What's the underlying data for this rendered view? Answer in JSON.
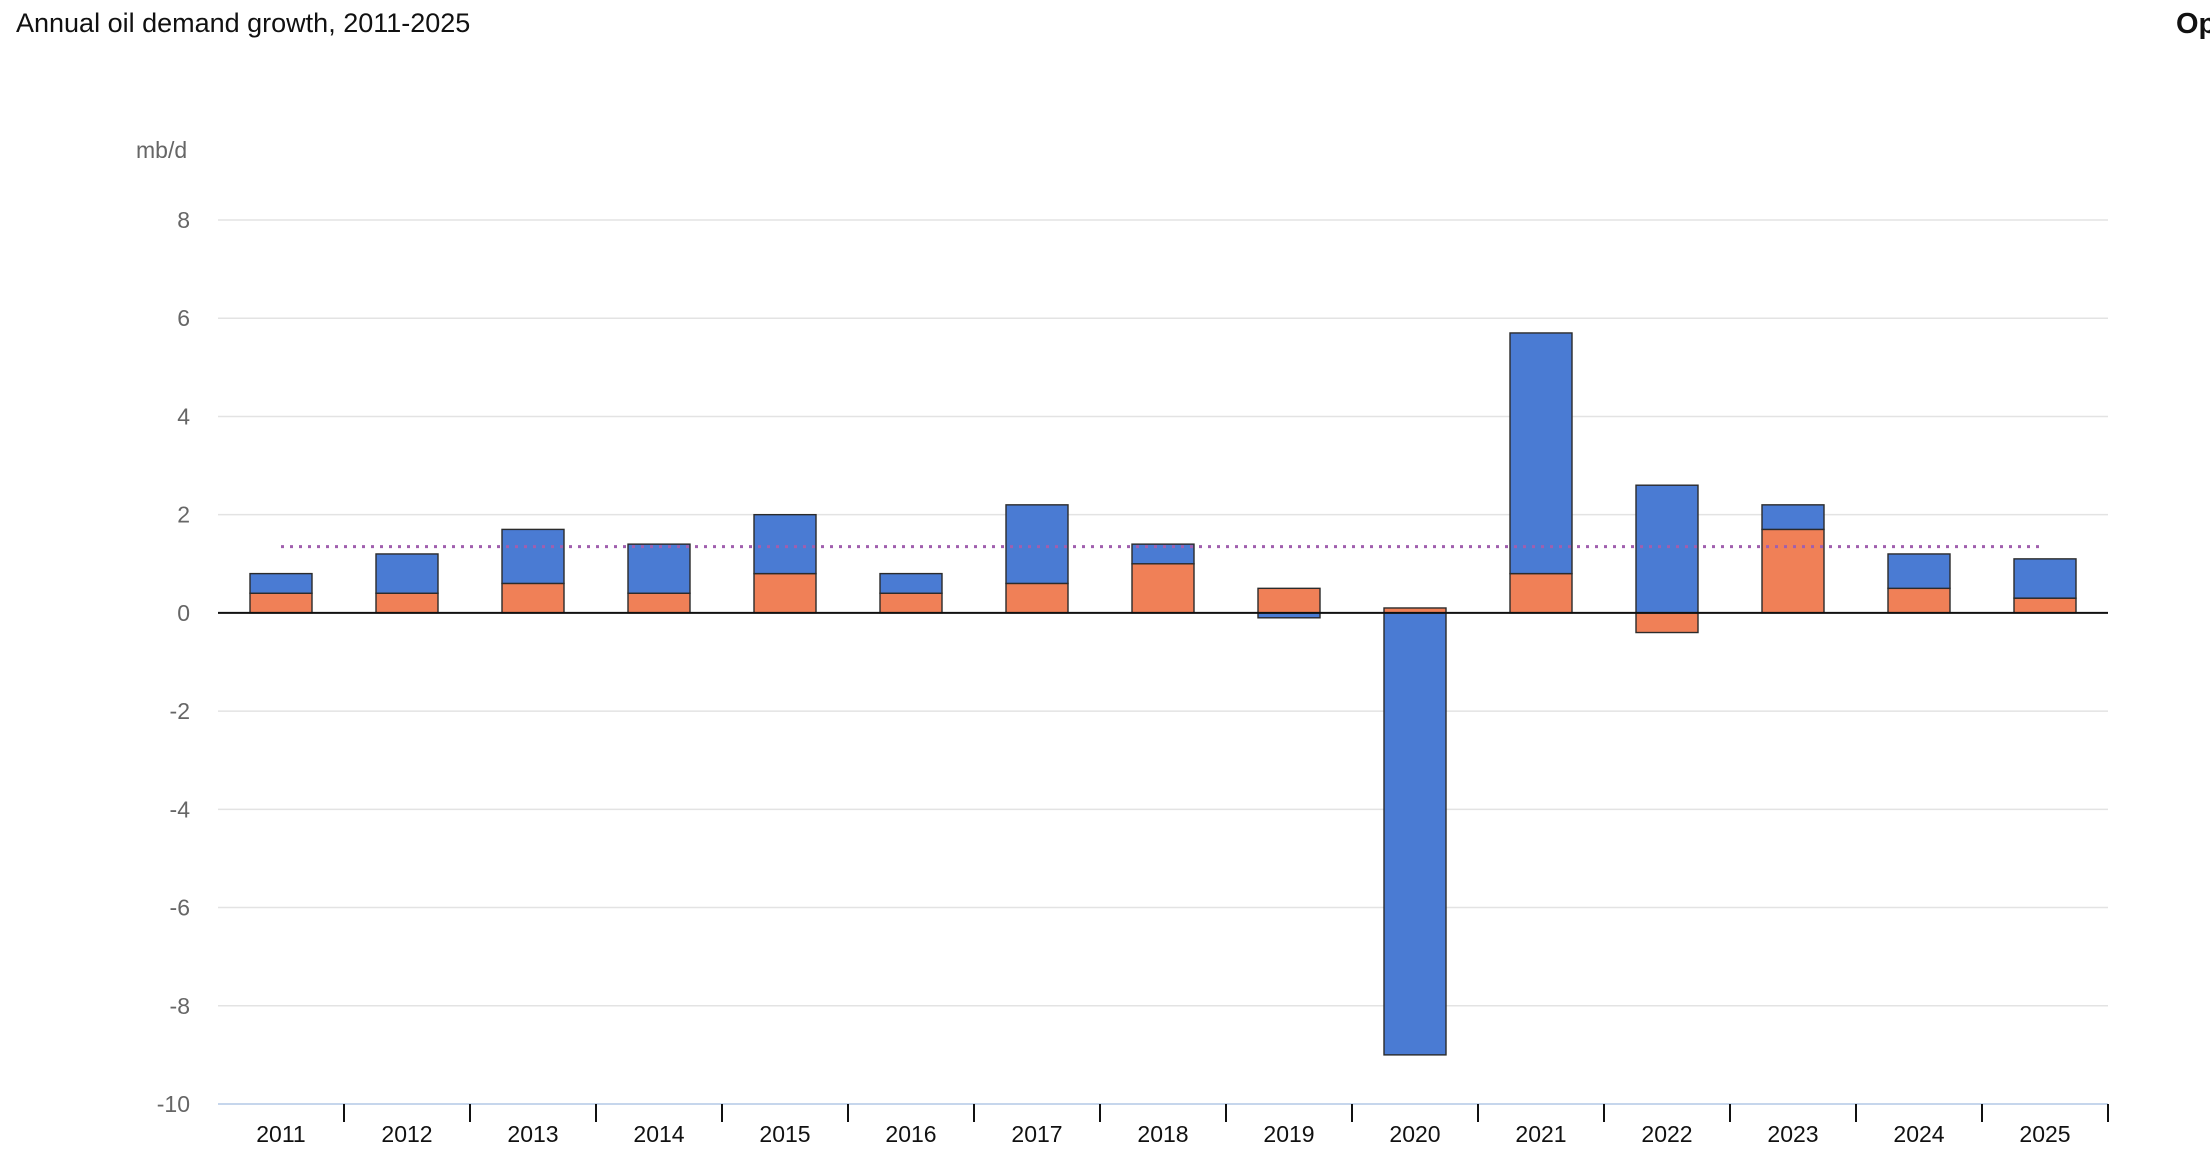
{
  "header": {
    "title": "Annual oil demand growth, 2011-2025",
    "right_label": "Op"
  },
  "chart_data": {
    "type": "bar",
    "stacked": true,
    "title": "Annual oil demand growth, 2011-2025",
    "ylabel": "mb/d",
    "xlabel": "",
    "ylim": [
      -10,
      8
    ],
    "yticks": [
      8,
      6,
      4,
      2,
      0,
      -2,
      -4,
      -6,
      -8,
      -10
    ],
    "grid": true,
    "categories": [
      "2011",
      "2012",
      "2013",
      "2014",
      "2015",
      "2016",
      "2017",
      "2018",
      "2019",
      "2020",
      "2021",
      "2022",
      "2023",
      "2024",
      "2025"
    ],
    "series": [
      {
        "color": "#f08057",
        "values": [
          0.4,
          0.4,
          0.6,
          0.4,
          0.8,
          0.4,
          0.6,
          1.0,
          0.5,
          0.1,
          0.8,
          -0.4,
          1.7,
          0.5,
          0.3
        ]
      },
      {
        "color": "#4a7bd3",
        "values": [
          0.4,
          0.8,
          1.1,
          1.0,
          1.2,
          0.4,
          1.6,
          0.4,
          -0.1,
          -9.0,
          4.9,
          2.6,
          0.5,
          0.7,
          0.8
        ]
      }
    ],
    "reference_line": {
      "value": 1.35,
      "style": "dotted",
      "color": "#a05fae"
    }
  }
}
